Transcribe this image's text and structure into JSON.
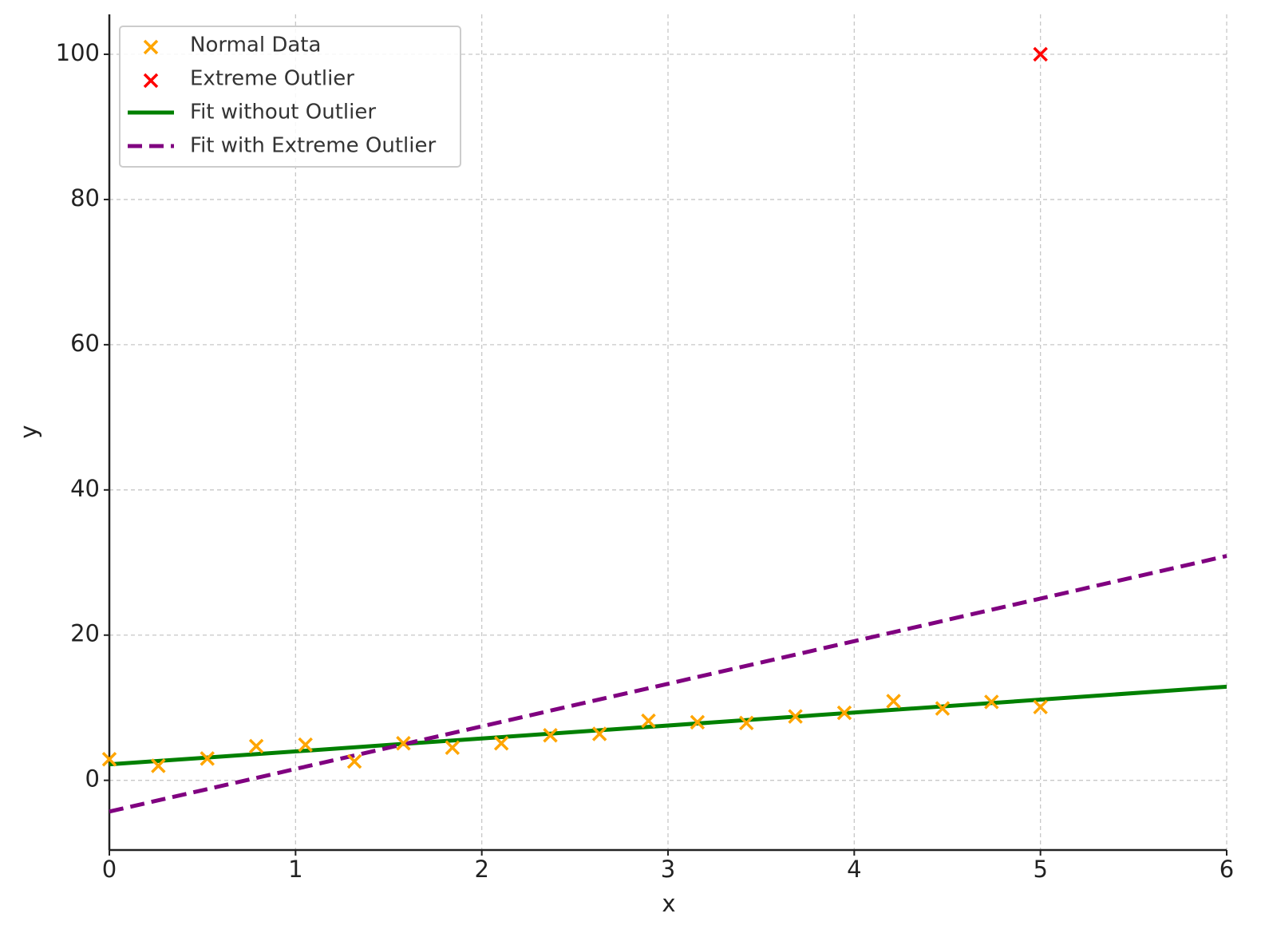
{
  "chart_data": {
    "type": "scatter",
    "x_label": "x",
    "y_label": "y",
    "xlim": [
      0,
      6
    ],
    "ylim": [
      -9.6,
      105.5
    ],
    "xticks": [
      0,
      1,
      2,
      3,
      4,
      5,
      6
    ],
    "yticks": [
      0,
      20,
      40,
      60,
      80,
      100
    ],
    "grid": true,
    "legend": "upper left",
    "series": [
      {
        "name": "Normal Data",
        "kind": "scatter",
        "marker": "x",
        "color": "#ffa500",
        "x": [
          0,
          0.263,
          0.526,
          0.789,
          1.053,
          1.316,
          1.579,
          1.842,
          2.105,
          2.368,
          2.632,
          2.895,
          3.158,
          3.421,
          3.684,
          3.947,
          4.211,
          4.474,
          4.737,
          5
        ],
        "values": [
          2.9,
          2.0,
          3.0,
          4.7,
          4.9,
          2.6,
          5.1,
          4.5,
          5.1,
          6.2,
          6.4,
          8.2,
          8.0,
          7.9,
          8.8,
          9.3,
          10.9,
          9.9,
          10.8,
          10.1
        ]
      },
      {
        "name": "Extreme Outlier",
        "kind": "scatter",
        "marker": "x",
        "color": "#ff0000",
        "x": [
          5
        ],
        "values": [
          100
        ]
      },
      {
        "name": "Fit without Outlier",
        "kind": "line",
        "linestyle": "solid",
        "color": "#008000",
        "x": [
          0,
          6
        ],
        "values": [
          2.2,
          12.9
        ]
      },
      {
        "name": "Fit with Extreme Outlier",
        "kind": "line",
        "linestyle": "dashed",
        "color": "#800080",
        "x": [
          0,
          6
        ],
        "values": [
          -4.3,
          30.9
        ]
      }
    ]
  }
}
